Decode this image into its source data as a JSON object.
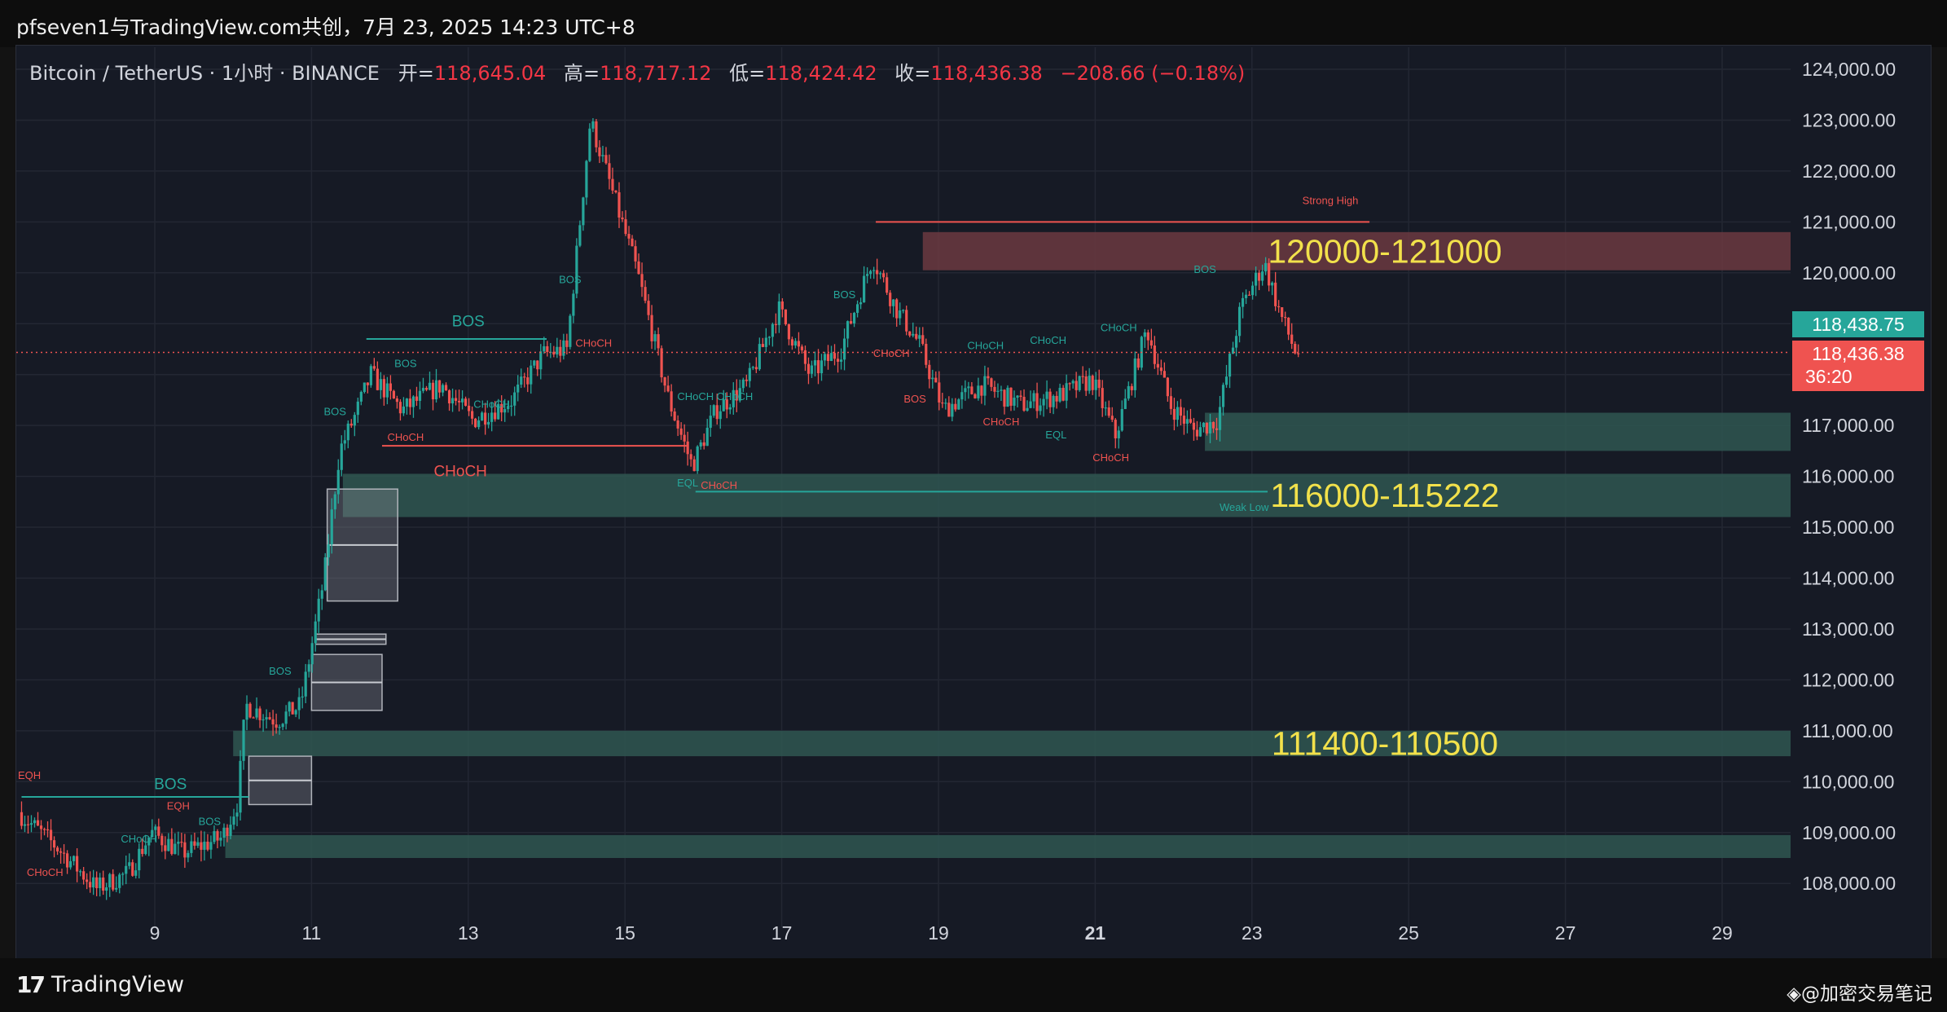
{
  "header": {
    "publisher_line": "pfseven1与TradingView.com共创，7月 23, 2025 14:23 UTC+8"
  },
  "symbol": {
    "name": "Bitcoin / TetherUS · 1小时 · BINANCE",
    "open_label": "开=",
    "open": "118,645.04",
    "high_label": "高=",
    "high": "118,717.12",
    "low_label": "低=",
    "low": "118,424.42",
    "close_label": "收=",
    "close": "118,436.38",
    "change": "−208.66 (−0.18%)"
  },
  "price_tags": {
    "green_price": "118,438.75",
    "red_price": "118,436.38",
    "countdown": "36:20"
  },
  "footer": {
    "logo_mark": "17",
    "logo_text": "TradingView",
    "watermark": "◈@加密交易笔记"
  },
  "colors": {
    "up": "#26a69a",
    "down": "#ef5350",
    "background": "#161a25",
    "zone_green": "#2f5751",
    "zone_red": "#6b3a41",
    "zone_label": "#f2e14b",
    "ob_gray": "#8a8d95"
  },
  "chart_data": {
    "type": "candlestick",
    "symbol": "BTCUSDT",
    "timeframe": "1h",
    "ylim": [
      107500,
      124400
    ],
    "y_ticks": [
      "124,000.00",
      "123,000.00",
      "122,000.00",
      "121,000.00",
      "120,000.00",
      "119,000.00",
      "118,000.00",
      "117,000.00",
      "116,000.00",
      "115,000.00",
      "114,000.00",
      "113,000.00",
      "112,000.00",
      "111,000.00",
      "110,000.00",
      "109,000.00",
      "108,000.00"
    ],
    "x_ticks": [
      "9",
      "11",
      "13",
      "15",
      "17",
      "19",
      "21",
      "23",
      "25",
      "27",
      "29"
    ],
    "bold_x_tick": "21",
    "xlim_days": [
      7.3,
      29.8
    ],
    "last_close": 118436.38,
    "zones": [
      {
        "label": "120000-121000",
        "top": 120800,
        "bottom": 120050,
        "from_day": 18.8,
        "color": "red"
      },
      {
        "label": "116000-115222",
        "top": 116050,
        "bottom": 115200,
        "from_day": 11.4,
        "color": "green"
      },
      {
        "label": "111400-110500",
        "top": 111000,
        "bottom": 110500,
        "from_day": 10.0,
        "color": "green"
      },
      {
        "label": "",
        "top": 117250,
        "bottom": 116500,
        "from_day": 22.4,
        "color": "green"
      },
      {
        "label": "",
        "top": 108950,
        "bottom": 108500,
        "from_day": 9.9,
        "color": "green"
      }
    ],
    "order_blocks": [
      {
        "top": 115750,
        "bottom": 113550,
        "from_day": 11.2,
        "to_day": 12.1
      },
      {
        "top": 112500,
        "bottom": 111400,
        "from_day": 11.0,
        "to_day": 11.9
      },
      {
        "top": 112900,
        "bottom": 112700,
        "from_day": 11.05,
        "to_day": 11.95
      },
      {
        "top": 110500,
        "bottom": 109550,
        "from_day": 10.2,
        "to_day": 11.0
      }
    ],
    "structure_levels": [
      {
        "price": 121000,
        "from_day": 18.2,
        "to_day": 24.5,
        "color": "down",
        "label": "Strong High"
      },
      {
        "price": 118700,
        "from_day": 11.7,
        "to_day": 14.0,
        "color": "up",
        "label": "BOS"
      },
      {
        "price": 116600,
        "from_day": 11.9,
        "to_day": 15.8,
        "color": "down",
        "label": ""
      },
      {
        "price": 115700,
        "from_day": 15.9,
        "to_day": 23.2,
        "color": "up",
        "label": ""
      },
      {
        "price": 109700,
        "from_day": 7.3,
        "to_day": 10.2,
        "color": "up",
        "label": "BOS"
      }
    ],
    "annotations": [
      {
        "text": "Strong High",
        "day": 24.0,
        "price": 121350,
        "color": "down",
        "size": "small"
      },
      {
        "text": "Weak Low",
        "day": 22.9,
        "price": 115320,
        "color": "up",
        "size": "small"
      },
      {
        "text": "BOS",
        "day": 13.0,
        "price": 118950,
        "color": "up",
        "size": "large"
      },
      {
        "text": "BOS",
        "day": 9.2,
        "price": 109850,
        "color": "up",
        "size": "large"
      },
      {
        "text": "CHoCH",
        "day": 12.9,
        "price": 116000,
        "color": "down",
        "size": "large"
      },
      {
        "text": "BOS",
        "day": 11.3,
        "price": 117200,
        "color": "up",
        "size": "small"
      },
      {
        "text": "BOS",
        "day": 12.2,
        "price": 118150,
        "color": "up",
        "size": "small"
      },
      {
        "text": "CHoCH",
        "day": 12.2,
        "price": 116700,
        "color": "down",
        "size": "small"
      },
      {
        "text": "CHoCH",
        "day": 13.3,
        "price": 117350,
        "color": "up",
        "size": "small"
      },
      {
        "text": "BOS",
        "day": 14.3,
        "price": 119800,
        "color": "up",
        "size": "small"
      },
      {
        "text": "CHoCH",
        "day": 14.6,
        "price": 118550,
        "color": "down",
        "size": "small"
      },
      {
        "text": "CHoCH",
        "day": 15.9,
        "price": 117500,
        "color": "up",
        "size": "small"
      },
      {
        "text": "CHoCH",
        "day": 16.4,
        "price": 117500,
        "color": "up",
        "size": "small"
      },
      {
        "text": "EQL",
        "day": 15.8,
        "price": 115800,
        "color": "up",
        "size": "small"
      },
      {
        "text": "CHoCH",
        "day": 16.2,
        "price": 115750,
        "color": "down",
        "size": "small"
      },
      {
        "text": "BOS",
        "day": 17.8,
        "price": 119500,
        "color": "up",
        "size": "small"
      },
      {
        "text": "CHoCH",
        "day": 18.4,
        "price": 118350,
        "color": "down",
        "size": "small"
      },
      {
        "text": "BOS",
        "day": 18.7,
        "price": 117450,
        "color": "down",
        "size": "small"
      },
      {
        "text": "CHoCH",
        "day": 19.6,
        "price": 118500,
        "color": "up",
        "size": "small"
      },
      {
        "text": "CHoCH",
        "day": 19.8,
        "price": 117000,
        "color": "down",
        "size": "small"
      },
      {
        "text": "CHoCH",
        "day": 20.4,
        "price": 118600,
        "color": "up",
        "size": "small"
      },
      {
        "text": "EQL",
        "day": 20.5,
        "price": 116750,
        "color": "up",
        "size": "small"
      },
      {
        "text": "CHoCH",
        "day": 21.2,
        "price": 116300,
        "color": "down",
        "size": "small"
      },
      {
        "text": "CHoCH",
        "day": 21.3,
        "price": 118850,
        "color": "up",
        "size": "small"
      },
      {
        "text": "BOS",
        "day": 22.4,
        "price": 120000,
        "color": "up",
        "size": "small"
      },
      {
        "text": "EQH",
        "day": 7.4,
        "price": 110050,
        "color": "down",
        "size": "small"
      },
      {
        "text": "EQH",
        "day": 9.3,
        "price": 109450,
        "color": "down",
        "size": "small"
      },
      {
        "text": "CHoCH",
        "day": 8.8,
        "price": 108800,
        "color": "up",
        "size": "small"
      },
      {
        "text": "BOS",
        "day": 9.7,
        "price": 109150,
        "color": "up",
        "size": "small"
      },
      {
        "text": "BOS",
        "day": 10.6,
        "price": 112100,
        "color": "up",
        "size": "small"
      },
      {
        "text": "CHoCH",
        "day": 7.6,
        "price": 108150,
        "color": "down",
        "size": "small"
      }
    ],
    "price_path": [
      {
        "day": 7.3,
        "price": 109400
      },
      {
        "day": 7.8,
        "price": 108700
      },
      {
        "day": 8.3,
        "price": 107900
      },
      {
        "day": 8.7,
        "price": 108200
      },
      {
        "day": 9.0,
        "price": 109000
      },
      {
        "day": 9.4,
        "price": 108600
      },
      {
        "day": 9.9,
        "price": 108900
      },
      {
        "day": 10.1,
        "price": 109600
      },
      {
        "day": 10.2,
        "price": 111500
      },
      {
        "day": 10.6,
        "price": 111200
      },
      {
        "day": 10.9,
        "price": 111500
      },
      {
        "day": 11.0,
        "price": 112300
      },
      {
        "day": 11.2,
        "price": 114000
      },
      {
        "day": 11.4,
        "price": 116500
      },
      {
        "day": 11.6,
        "price": 117200
      },
      {
        "day": 11.8,
        "price": 118000
      },
      {
        "day": 12.2,
        "price": 117300
      },
      {
        "day": 12.7,
        "price": 117800
      },
      {
        "day": 13.1,
        "price": 117100
      },
      {
        "day": 13.6,
        "price": 117500
      },
      {
        "day": 14.0,
        "price": 118400
      },
      {
        "day": 14.3,
        "price": 118500
      },
      {
        "day": 14.6,
        "price": 123000
      },
      {
        "day": 14.9,
        "price": 121500
      },
      {
        "day": 15.2,
        "price": 120000
      },
      {
        "day": 15.6,
        "price": 117500
      },
      {
        "day": 15.9,
        "price": 116200
      },
      {
        "day": 16.2,
        "price": 117300
      },
      {
        "day": 16.6,
        "price": 117800
      },
      {
        "day": 17.0,
        "price": 119300
      },
      {
        "day": 17.4,
        "price": 118000
      },
      {
        "day": 17.8,
        "price": 118500
      },
      {
        "day": 18.2,
        "price": 120300
      },
      {
        "day": 18.5,
        "price": 119300
      },
      {
        "day": 18.8,
        "price": 118600
      },
      {
        "day": 19.1,
        "price": 117300
      },
      {
        "day": 19.6,
        "price": 117800
      },
      {
        "day": 20.1,
        "price": 117400
      },
      {
        "day": 20.6,
        "price": 117600
      },
      {
        "day": 21.0,
        "price": 117900
      },
      {
        "day": 21.3,
        "price": 116800
      },
      {
        "day": 21.7,
        "price": 118900
      },
      {
        "day": 22.0,
        "price": 117400
      },
      {
        "day": 22.3,
        "price": 116900
      },
      {
        "day": 22.6,
        "price": 117100
      },
      {
        "day": 22.9,
        "price": 119300
      },
      {
        "day": 23.2,
        "price": 120200
      },
      {
        "day": 23.4,
        "price": 119200
      },
      {
        "day": 23.6,
        "price": 118436
      }
    ]
  }
}
